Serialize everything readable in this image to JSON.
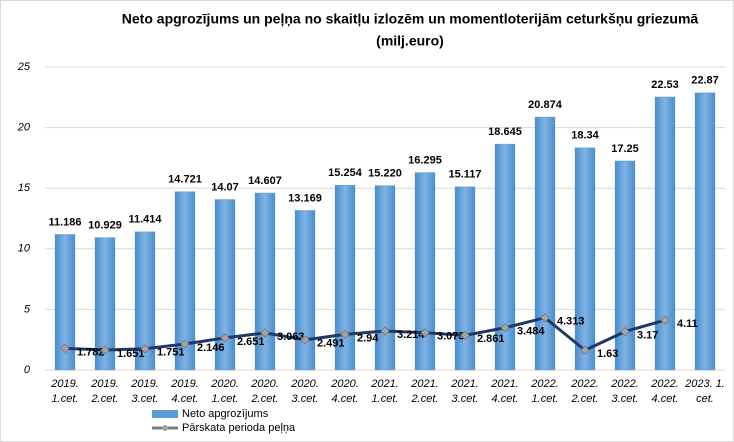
{
  "chart_data": {
    "type": "bar",
    "title": [
      "Neto apgrozījums un peļņa no skaitļu izlozēm un momentloterijām  ceturkšņu griezumā",
      "(milj.euro)"
    ],
    "categories": [
      [
        "2019.",
        "1.cet."
      ],
      [
        "2019.",
        "2.cet."
      ],
      [
        "2019.",
        "3.cet."
      ],
      [
        "2019.",
        "4.cet."
      ],
      [
        "2020.",
        "1.cet."
      ],
      [
        "2020.",
        "2.cet."
      ],
      [
        "2020.",
        "3.cet."
      ],
      [
        "2020.",
        "4.cet."
      ],
      [
        "2021.",
        "1.cet."
      ],
      [
        "2021.",
        "2.cet."
      ],
      [
        "2021.",
        "3.cet."
      ],
      [
        "2021.",
        "4.cet."
      ],
      [
        "2022.",
        "1.cet."
      ],
      [
        "2022.",
        "2.cet."
      ],
      [
        "2022.",
        "3.cet."
      ],
      [
        "2022.",
        "4.cet."
      ],
      [
        "2023. 1.",
        "cet."
      ]
    ],
    "series": [
      {
        "name": "Neto apgrozījums",
        "type": "bar",
        "color": "#5b9bd5",
        "values": [
          11.186,
          10.929,
          11.414,
          14.721,
          14.07,
          14.607,
          13.169,
          15.254,
          15.22,
          16.295,
          15.117,
          18.645,
          20.874,
          18.34,
          17.25,
          22.53,
          22.87
        ],
        "value_labels": [
          "11.186",
          "10.929",
          "11.414",
          "14.721",
          "14.07",
          "14.607",
          "13.169",
          "15.254",
          "15.220",
          "16.295",
          "15.117",
          "18.645",
          "20.874",
          "18.34",
          "17.25",
          "22.53",
          "22.87"
        ]
      },
      {
        "name": "Pārskata perioda peļņa",
        "type": "line",
        "color": "#1f3864",
        "values": [
          1.782,
          1.651,
          1.751,
          2.146,
          2.651,
          3.063,
          2.491,
          2.94,
          3.214,
          3.073,
          2.861,
          3.484,
          4.313,
          1.63,
          3.17,
          4.11,
          null
        ]
      }
    ],
    "ylim": [
      0,
      25
    ],
    "yticks": [
      0,
      5,
      10,
      15,
      20,
      25
    ],
    "grid": true
  }
}
